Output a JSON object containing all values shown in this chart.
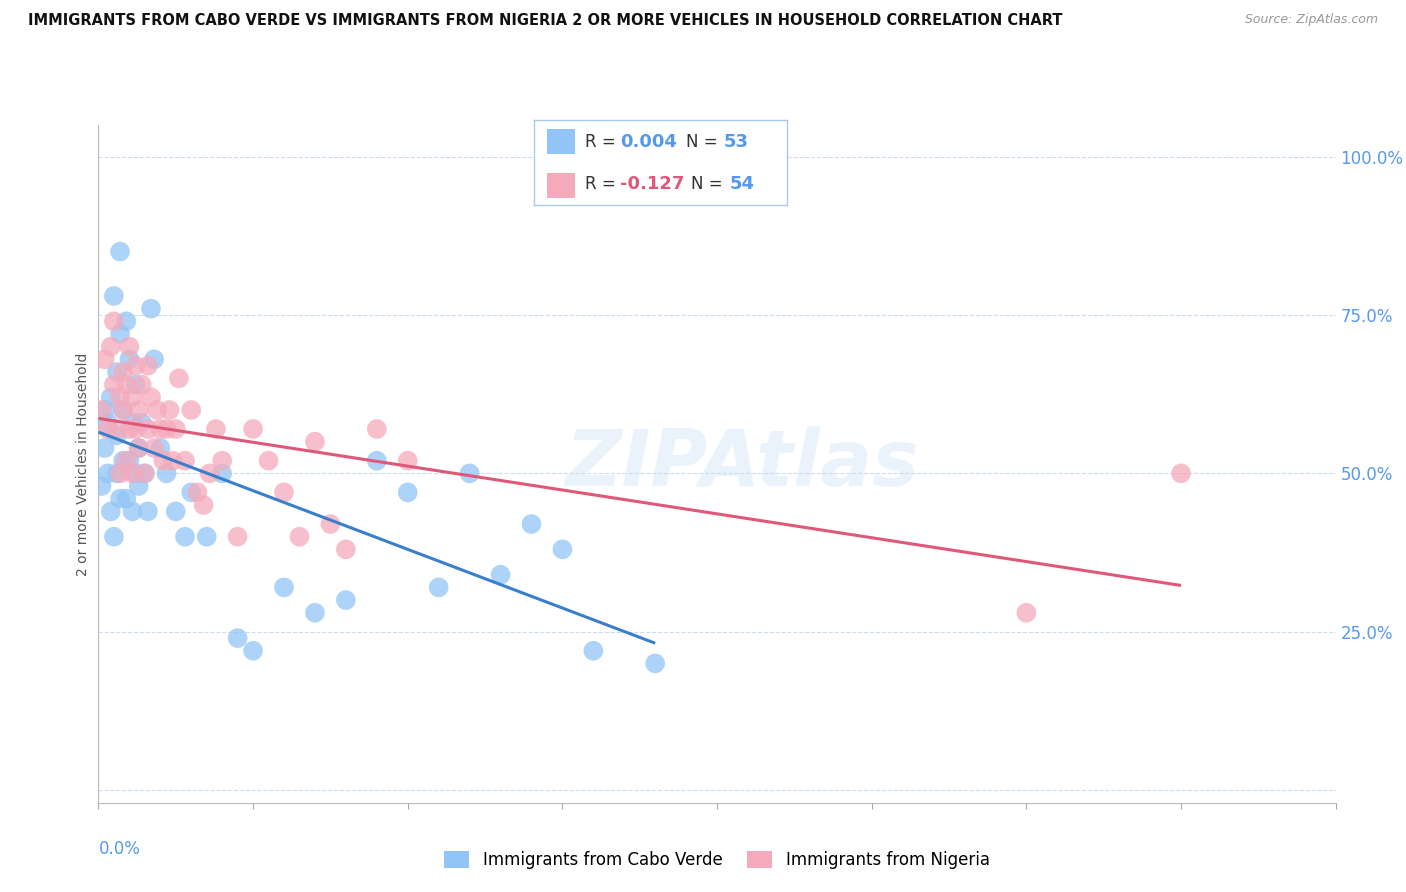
{
  "title": "IMMIGRANTS FROM CABO VERDE VS IMMIGRANTS FROM NIGERIA 2 OR MORE VEHICLES IN HOUSEHOLD CORRELATION CHART",
  "source": "Source: ZipAtlas.com",
  "ylabel": "2 or more Vehicles in Household",
  "xlim": [
    0.0,
    0.4
  ],
  "ylim": [
    -0.02,
    1.05
  ],
  "watermark": "ZIPAtlas",
  "ytick_vals": [
    0.0,
    0.25,
    0.5,
    0.75,
    1.0
  ],
  "ytick_labels": [
    "",
    "25.0%",
    "50.0%",
    "75.0%",
    "100.0%"
  ],
  "series": [
    {
      "name": "Immigrants from Cabo Verde",
      "R": 0.004,
      "N": 53,
      "color": "#92c5f7",
      "trend_color": "#3a7fcc",
      "x": [
        0.001,
        0.002,
        0.002,
        0.003,
        0.003,
        0.004,
        0.004,
        0.005,
        0.005,
        0.006,
        0.006,
        0.006,
        0.007,
        0.007,
        0.007,
        0.008,
        0.008,
        0.009,
        0.009,
        0.01,
        0.01,
        0.011,
        0.011,
        0.012,
        0.012,
        0.013,
        0.013,
        0.014,
        0.015,
        0.016,
        0.017,
        0.018,
        0.02,
        0.022,
        0.025,
        0.028,
        0.03,
        0.035,
        0.04,
        0.045,
        0.05,
        0.06,
        0.07,
        0.08,
        0.09,
        0.1,
        0.11,
        0.12,
        0.13,
        0.14,
        0.15,
        0.16,
        0.18
      ],
      "y": [
        0.48,
        0.54,
        0.6,
        0.5,
        0.58,
        0.44,
        0.62,
        0.78,
        0.4,
        0.66,
        0.56,
        0.5,
        0.72,
        0.46,
        0.85,
        0.52,
        0.6,
        0.46,
        0.74,
        0.52,
        0.68,
        0.44,
        0.58,
        0.5,
        0.64,
        0.54,
        0.48,
        0.58,
        0.5,
        0.44,
        0.76,
        0.68,
        0.54,
        0.5,
        0.44,
        0.4,
        0.47,
        0.4,
        0.5,
        0.24,
        0.22,
        0.32,
        0.28,
        0.3,
        0.52,
        0.47,
        0.32,
        0.5,
        0.34,
        0.42,
        0.38,
        0.22,
        0.2
      ]
    },
    {
      "name": "Immigrants from Nigeria",
      "R": -0.127,
      "N": 54,
      "color": "#f5aabb",
      "trend_color": "#e05878",
      "x": [
        0.001,
        0.002,
        0.003,
        0.004,
        0.005,
        0.005,
        0.006,
        0.007,
        0.007,
        0.008,
        0.008,
        0.009,
        0.009,
        0.01,
        0.01,
        0.011,
        0.011,
        0.012,
        0.012,
        0.013,
        0.013,
        0.014,
        0.015,
        0.016,
        0.016,
        0.017,
        0.018,
        0.019,
        0.02,
        0.021,
        0.022,
        0.023,
        0.024,
        0.025,
        0.026,
        0.028,
        0.03,
        0.032,
        0.034,
        0.036,
        0.038,
        0.04,
        0.045,
        0.05,
        0.055,
        0.06,
        0.065,
        0.07,
        0.075,
        0.08,
        0.09,
        0.1,
        0.3,
        0.35
      ],
      "y": [
        0.6,
        0.68,
        0.57,
        0.7,
        0.64,
        0.74,
        0.57,
        0.62,
        0.5,
        0.66,
        0.6,
        0.52,
        0.64,
        0.57,
        0.7,
        0.5,
        0.62,
        0.57,
        0.67,
        0.54,
        0.6,
        0.64,
        0.5,
        0.57,
        0.67,
        0.62,
        0.54,
        0.6,
        0.57,
        0.52,
        0.57,
        0.6,
        0.52,
        0.57,
        0.65,
        0.52,
        0.6,
        0.47,
        0.45,
        0.5,
        0.57,
        0.52,
        0.4,
        0.57,
        0.52,
        0.47,
        0.4,
        0.55,
        0.42,
        0.38,
        0.57,
        0.52,
        0.28,
        0.5
      ]
    }
  ]
}
